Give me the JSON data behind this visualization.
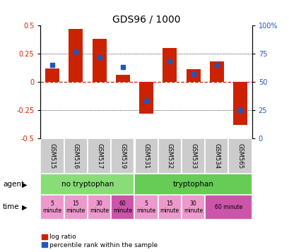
{
  "title": "GDS96 / 1000",
  "samples": [
    "GSM515",
    "GSM516",
    "GSM517",
    "GSM519",
    "GSM531",
    "GSM532",
    "GSM533",
    "GSM534",
    "GSM565"
  ],
  "log_ratio": [
    0.12,
    0.47,
    0.38,
    0.06,
    -0.28,
    0.3,
    0.11,
    0.18,
    -0.38
  ],
  "percentile_pct": [
    65,
    77,
    72,
    63,
    33,
    68,
    57,
    65,
    25
  ],
  "ylim_left": [
    -0.5,
    0.5
  ],
  "ylim_right": [
    0,
    100
  ],
  "yticks_left": [
    -0.5,
    -0.25,
    0.0,
    0.25,
    0.5
  ],
  "ytick_labels_left": [
    "-0.5",
    "-0.25",
    "0",
    "0.25",
    "0.5"
  ],
  "yticks_right": [
    0,
    25,
    50,
    75,
    100
  ],
  "ytick_labels_right": [
    "0",
    "25",
    "50",
    "75",
    "100%"
  ],
  "bar_color": "#cc2200",
  "dot_color": "#2255bb",
  "zero_line_color": "#cc2200",
  "agent_no_trp_color": "#88dd77",
  "agent_trp_color": "#66cc55",
  "time_light_color": "#ee99cc",
  "time_dark_color": "#cc55aa",
  "gsm_bg_color": "#cccccc",
  "legend_red": "log ratio",
  "legend_blue": "percentile rank within the sample",
  "time_configs": [
    [
      0,
      1,
      "#ee99cc",
      "5\nminute"
    ],
    [
      1,
      1,
      "#ee99cc",
      "15\nminute"
    ],
    [
      2,
      1,
      "#ee99cc",
      "30\nminute"
    ],
    [
      3,
      1,
      "#cc55aa",
      "60\nminute"
    ],
    [
      4,
      1,
      "#ee99cc",
      "5\nminute"
    ],
    [
      5,
      1,
      "#ee99cc",
      "15\nminute"
    ],
    [
      6,
      1,
      "#ee99cc",
      "30\nminute"
    ],
    [
      7,
      2,
      "#cc55aa",
      "60 minute"
    ]
  ]
}
